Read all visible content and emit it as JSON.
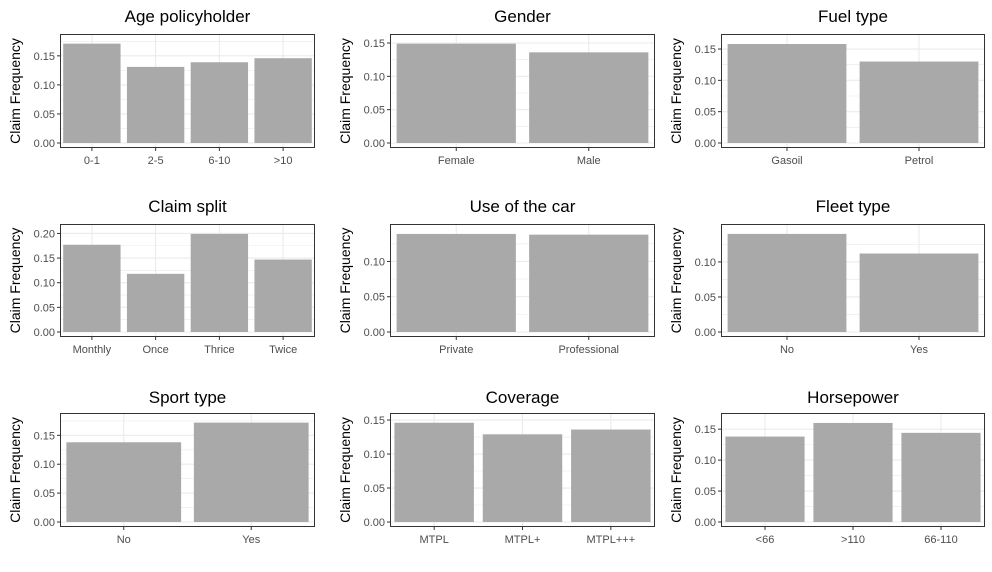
{
  "chart_data": [
    {
      "type": "bar",
      "title": "Age policyholder",
      "ylabel": "Claim Frequency",
      "categories": [
        "0-1",
        "2-5",
        "6-10",
        ">10"
      ],
      "values": [
        0.171,
        0.131,
        0.139,
        0.146
      ],
      "ylim": [
        0,
        0.179
      ],
      "yticks": [
        0.0,
        0.05,
        0.1,
        0.15
      ],
      "yticklabels": [
        "0.00",
        "0.05",
        "0.10",
        "0.15"
      ],
      "grid": true
    },
    {
      "type": "bar",
      "title": "Gender",
      "ylabel": "Claim Frequency",
      "categories": [
        "Female",
        "Male"
      ],
      "values": [
        0.149,
        0.136
      ],
      "ylim": [
        0,
        0.156
      ],
      "yticks": [
        0.0,
        0.05,
        0.1,
        0.15
      ],
      "yticklabels": [
        "0.00",
        "0.05",
        "0.10",
        "0.15"
      ],
      "grid": true
    },
    {
      "type": "bar",
      "title": "Fuel type",
      "ylabel": "Claim Frequency",
      "categories": [
        "Gasoil",
        "Petrol"
      ],
      "values": [
        0.158,
        0.13
      ],
      "ylim": [
        0,
        0.166
      ],
      "yticks": [
        0.0,
        0.05,
        0.1,
        0.15
      ],
      "yticklabels": [
        "0.00",
        "0.05",
        "0.10",
        "0.15"
      ],
      "grid": true
    },
    {
      "type": "bar",
      "title": "Claim split",
      "ylabel": "Claim Frequency",
      "categories": [
        "Monthly",
        "Once",
        "Thrice",
        "Twice"
      ],
      "values": [
        0.177,
        0.118,
        0.199,
        0.147
      ],
      "ylim": [
        0,
        0.209
      ],
      "yticks": [
        0.0,
        0.05,
        0.1,
        0.15,
        0.2
      ],
      "yticklabels": [
        "0.00",
        "0.05",
        "0.10",
        "0.15",
        "0.20"
      ],
      "grid": true
    },
    {
      "type": "bar",
      "title": "Use of the car",
      "ylabel": "Claim Frequency",
      "categories": [
        "Private",
        "Professional"
      ],
      "values": [
        0.139,
        0.138
      ],
      "ylim": [
        0,
        0.146
      ],
      "yticks": [
        0.0,
        0.05,
        0.1
      ],
      "yticklabels": [
        "0.00",
        "0.05",
        "0.10"
      ],
      "grid": true
    },
    {
      "type": "bar",
      "title": "Fleet type",
      "ylabel": "Claim Frequency",
      "categories": [
        "No",
        "Yes"
      ],
      "values": [
        0.14,
        0.112
      ],
      "ylim": [
        0,
        0.147
      ],
      "yticks": [
        0.0,
        0.05,
        0.1
      ],
      "yticklabels": [
        "0.00",
        "0.05",
        "0.10"
      ],
      "grid": true
    },
    {
      "type": "bar",
      "title": "Sport type",
      "ylabel": "Claim Frequency",
      "categories": [
        "No",
        "Yes"
      ],
      "values": [
        0.138,
        0.172
      ],
      "ylim": [
        0,
        0.18
      ],
      "yticks": [
        0.0,
        0.05,
        0.1,
        0.15
      ],
      "yticklabels": [
        "0.00",
        "0.05",
        "0.10",
        "0.15"
      ],
      "grid": true
    },
    {
      "type": "bar",
      "title": "Coverage",
      "ylabel": "Claim Frequency",
      "categories": [
        "MTPL",
        "MTPL+",
        "MTPL+++"
      ],
      "values": [
        0.146,
        0.129,
        0.136
      ],
      "ylim": [
        0,
        0.153
      ],
      "yticks": [
        0.0,
        0.05,
        0.1,
        0.15
      ],
      "yticklabels": [
        "0.00",
        "0.05",
        "0.10",
        "0.15"
      ],
      "grid": true
    },
    {
      "type": "bar",
      "title": "Horsepower",
      "ylabel": "Claim Frequency",
      "categories": [
        "<66",
        ">110",
        "66-110"
      ],
      "values": [
        0.138,
        0.16,
        0.144
      ],
      "ylim": [
        0,
        0.168
      ],
      "yticks": [
        0.0,
        0.05,
        0.1,
        0.15
      ],
      "yticklabels": [
        "0.00",
        "0.05",
        "0.10",
        "0.15"
      ],
      "grid": true
    }
  ],
  "colors": {
    "bar": "#a9a9a9",
    "grid": "#ebebeb",
    "panel_border": "#333333",
    "text": "#000000",
    "tick_text": "#4d4d4d"
  }
}
